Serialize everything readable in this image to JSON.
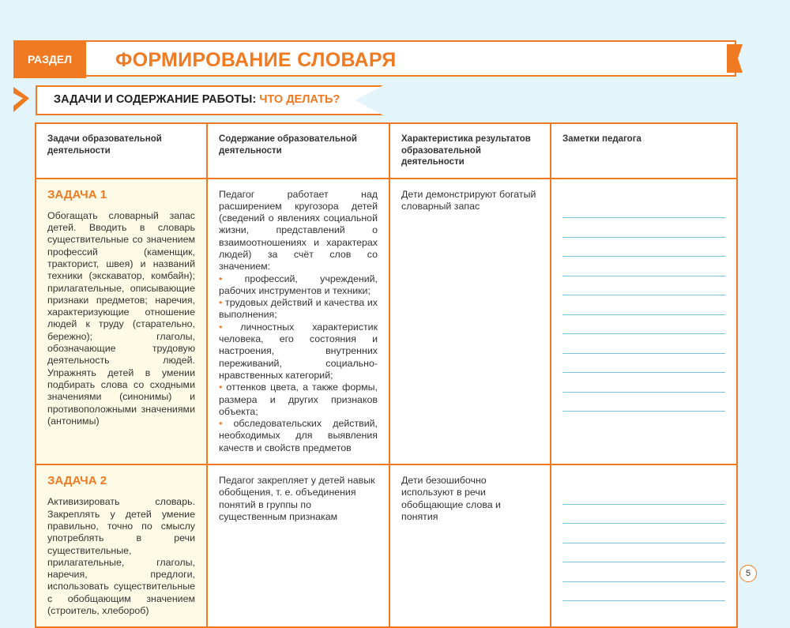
{
  "header": {
    "section_tag": "РАЗДЕЛ",
    "title": "ФОРМИРОВАНИЕ СЛОВАРЯ"
  },
  "subheader": {
    "label": "ЗАДАЧИ И СОДЕРЖАНИЕ РАБОТЫ:",
    "accent": "ЧТО ДЕЛАТЬ?"
  },
  "table": {
    "columns": [
      "Задачи образовательной деятельности",
      "Содержание образовательной деятельности",
      "Характеристика результатов образовательной деятельности",
      "Заметки педагога"
    ],
    "rows": [
      {
        "task_title": "ЗАДАЧА 1",
        "task_text": "Обогащать словарный запас детей. Вводить в словарь существительные со значением профессий (каменщик, тракторист, швея) и названий техники (экскаватор, комбайн); прилагательные, описывающие признаки предметов; наречия, характеризующие отношение людей к труду (старательно, бережно); глаголы, обозначающие трудовую деятельность людей. Упражнять детей в умении подбирать слова со сходными значениями (синонимы) и противоположными значениями (антонимы)",
        "content_intro": "Педагог работает над расширением кругозора детей (сведений о явлениях социальной жизни, представлений о взаимоотношениях и характерах людей) за счёт слов со значением:",
        "content_items": [
          "профессий, учреждений, рабочих инструментов и техники;",
          "трудовых действий и качества их выполнения;",
          "личностных характеристик человека, его состояния и настроения, внутренних переживаний, социально-нравственных категорий;",
          "оттенков цвета, а также формы, размера и других признаков объекта;",
          "обследовательских действий, необходимых для выявления качеств и свойств предметов"
        ],
        "results": "Дети демонстрируют богатый словарный запас"
      },
      {
        "task_title": "ЗАДАЧА 2",
        "task_text": "Активизировать словарь. Закреплять у детей умение правильно, точно по смыслу употреблять в речи существительные, прилагательные, глаголы, наречия, предлоги, использовать существительные с обобщающим значением (строитель, хлебороб)",
        "content_intro": "Педагог закрепляет у детей навык обобщения, т. е. объединения понятий в группы по существенным признакам",
        "results": "Дети безошибочно используют в речи обобщающие слова и понятия"
      }
    ]
  },
  "page_number": "5",
  "colors": {
    "accent": "#f07a22",
    "background": "#e4f4fb",
    "note_lines": "#7cc3e3",
    "task_cell": "#fdfbe5"
  }
}
